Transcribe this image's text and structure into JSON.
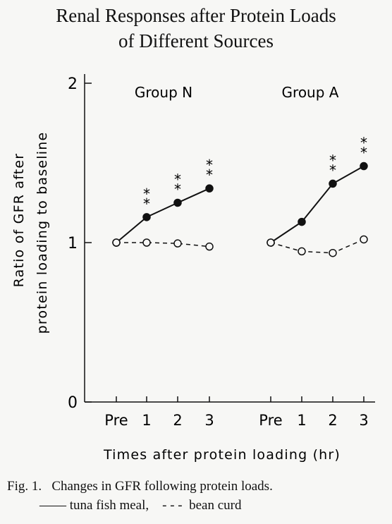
{
  "title_line1": "Renal Responses after Protein Loads",
  "title_line2": "of Different Sources",
  "caption": {
    "line1": "Fig. 1.   Changes in GFR following protein loads.",
    "line2": "—— tuna fish meal,    - - -  bean curd"
  },
  "chart_data": {
    "type": "line",
    "ylabel_line1": "Ratio of GFR after",
    "ylabel_line2": "protein loading to baseline",
    "xlabel": "Times after protein loading (hr)",
    "ylim": [
      0,
      2
    ],
    "yticks": [
      "0",
      "1",
      "2"
    ],
    "panels": [
      {
        "label": "Group N",
        "x": [
          "Pre",
          "1",
          "2",
          "3"
        ],
        "series": [
          {
            "values": [
              1.0,
              1.16,
              1.25,
              1.34
            ],
            "style": "solid",
            "marker": "filled",
            "significance": [
              "",
              "**",
              "**",
              "**"
            ]
          },
          {
            "values": [
              1.0,
              1.0,
              0.995,
              0.975
            ],
            "style": "dashed",
            "marker": "open"
          }
        ]
      },
      {
        "label": "Group A",
        "x": [
          "Pre",
          "1",
          "2",
          "3"
        ],
        "series": [
          {
            "values": [
              1.0,
              1.13,
              1.37,
              1.48
            ],
            "style": "solid",
            "marker": "filled",
            "significance": [
              "",
              "",
              "**",
              "**"
            ]
          },
          {
            "values": [
              1.0,
              0.945,
              0.935,
              1.02
            ],
            "style": "dashed",
            "marker": "open"
          }
        ]
      }
    ]
  }
}
